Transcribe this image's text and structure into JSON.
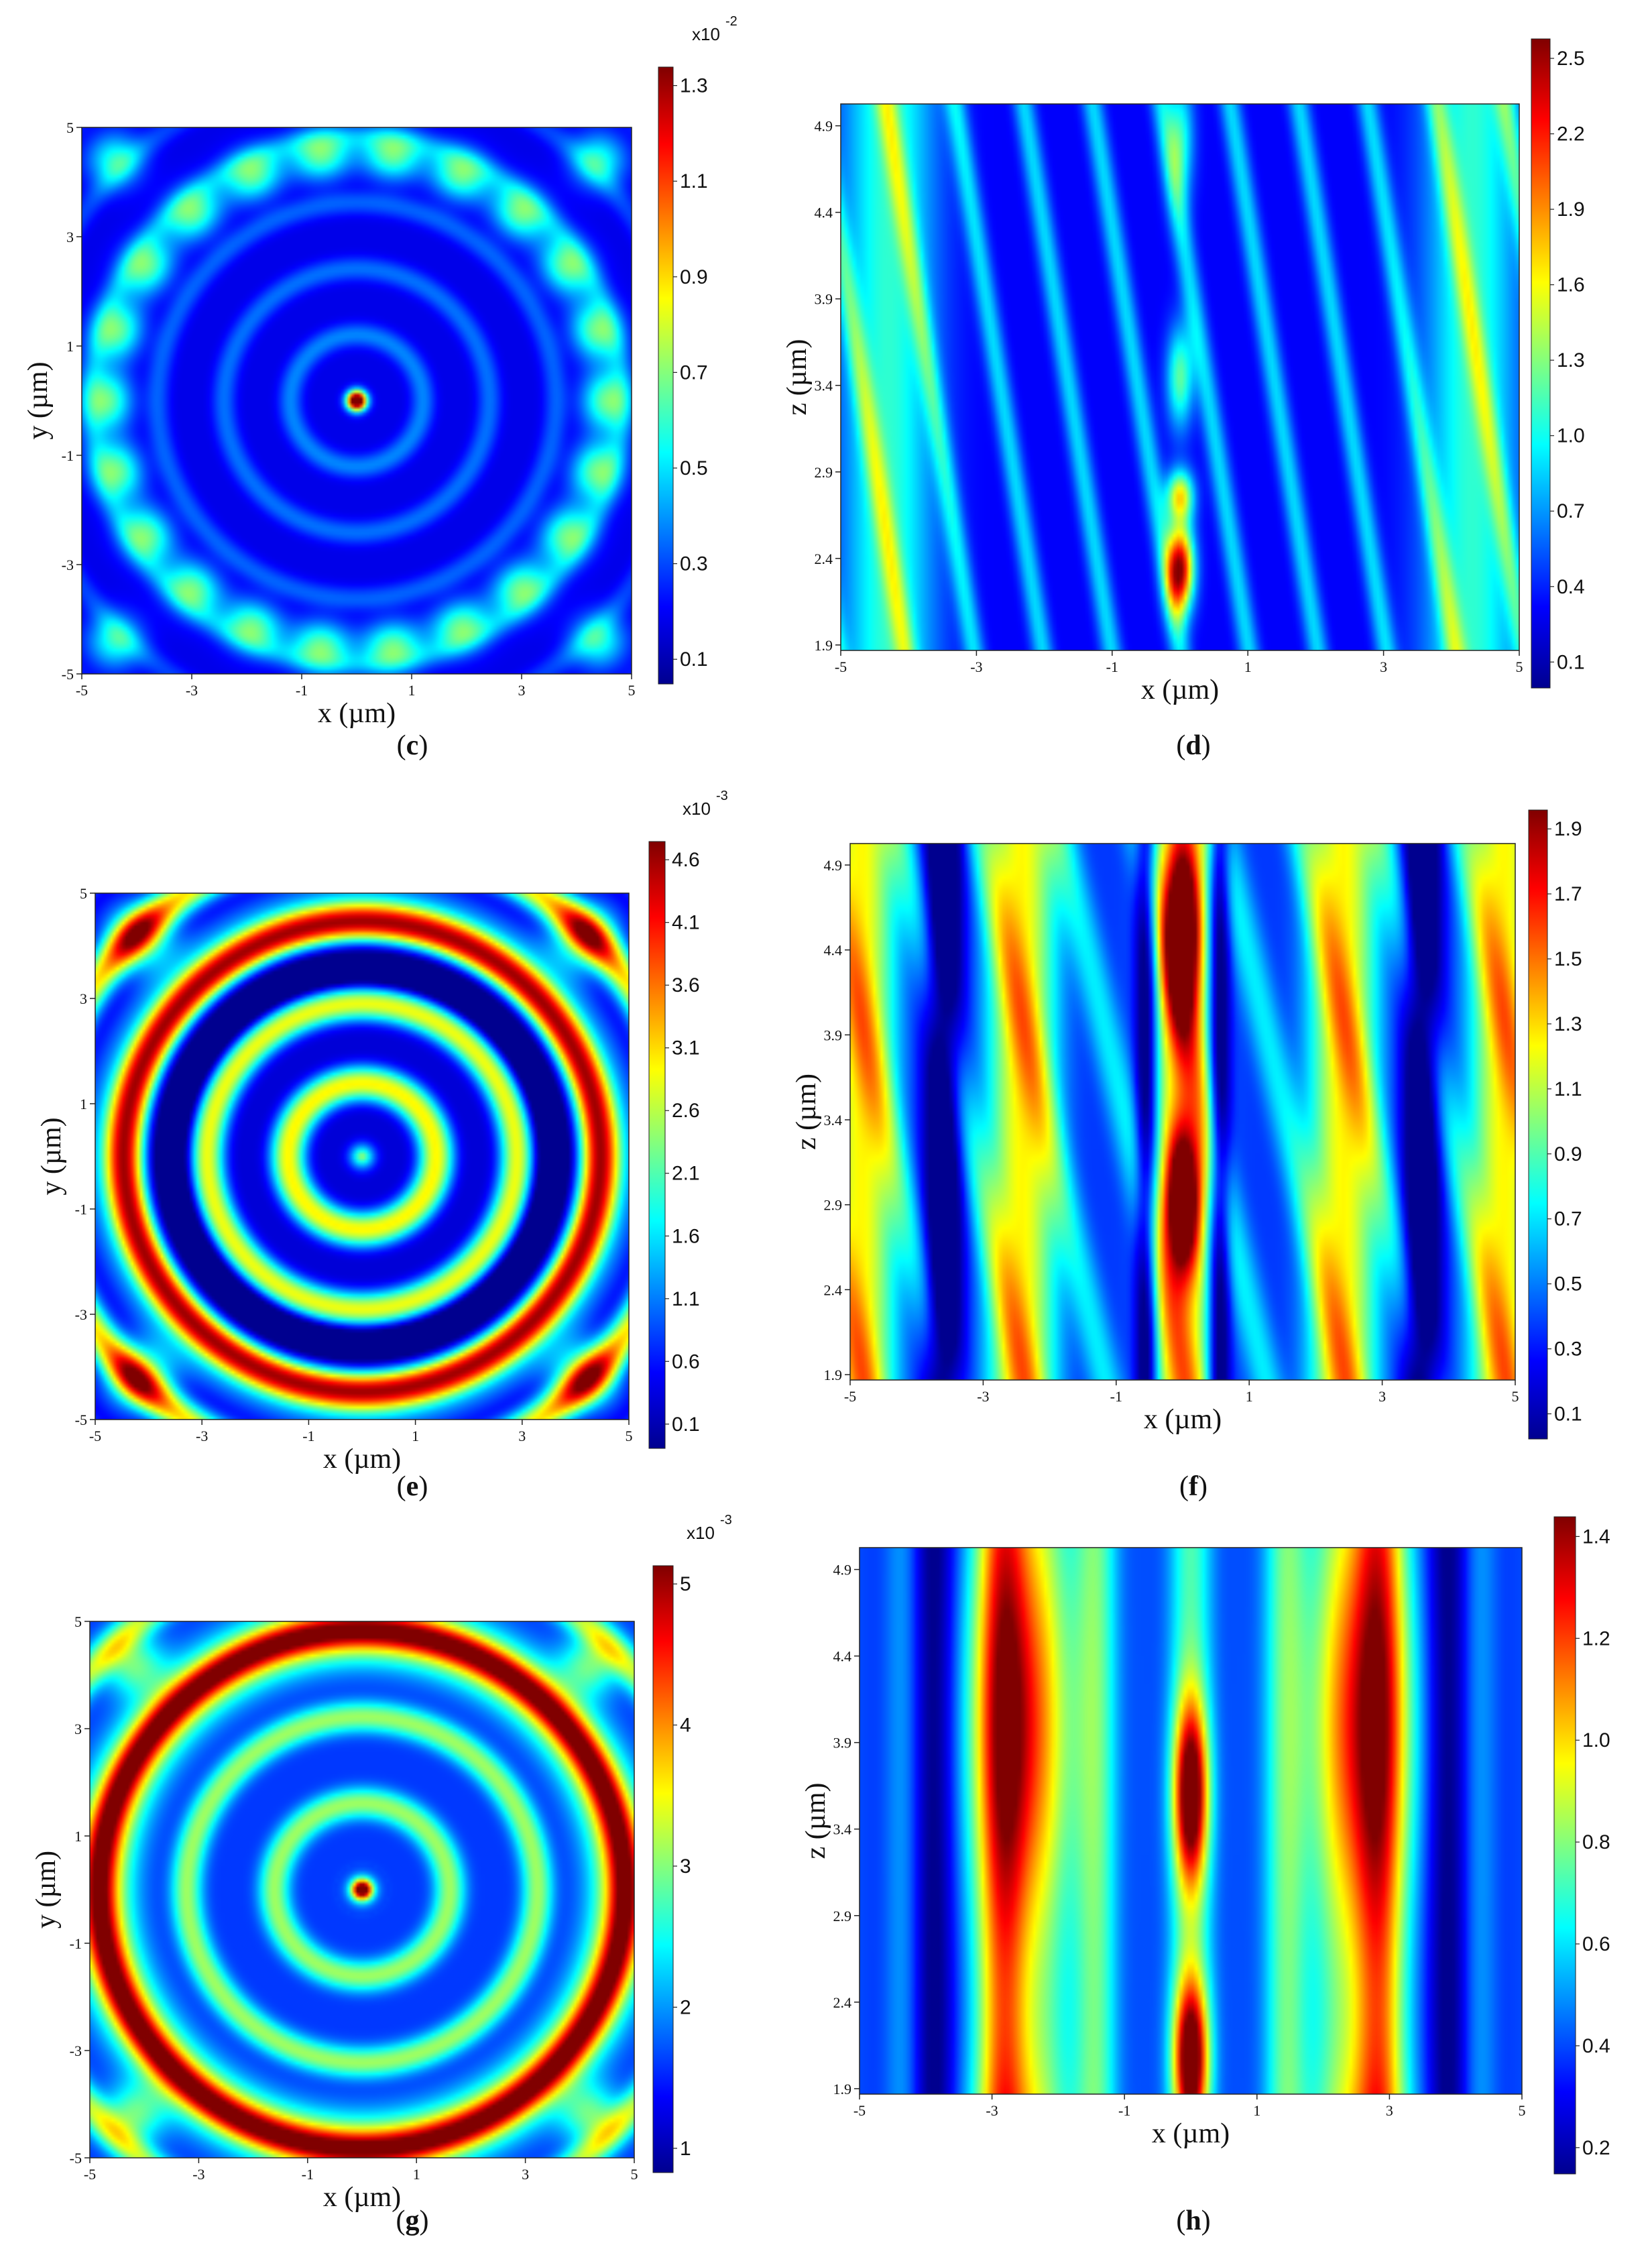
{
  "figure": {
    "colormap": [
      "#00008f",
      "#0000ff",
      "#0080ff",
      "#00ffff",
      "#80ff80",
      "#ffff00",
      "#ff8000",
      "#ff0000",
      "#800000"
    ]
  },
  "chart_data": [
    {
      "id": "c",
      "type": "heatmap",
      "panel_label": "c",
      "xlabel": "x (µm)",
      "ylabel": "y (µm)",
      "xlim": [
        -5,
        5
      ],
      "ylim": [
        -5,
        5
      ],
      "xticks": [
        "-5",
        "-3",
        "-1",
        "1",
        "3",
        "5"
      ],
      "yticks": [
        "-5",
        "-3",
        "-1",
        "1",
        "3",
        "5"
      ],
      "field": "focus_rings",
      "colorbar": {
        "multiplier": "x10",
        "exponent": "-2",
        "ticks": [
          "1.3",
          "1.1",
          "0.9",
          "0.7",
          "0.5",
          "0.3",
          "0.1"
        ]
      }
    },
    {
      "id": "d",
      "type": "heatmap",
      "panel_label": "d",
      "xlabel": "x (µm)",
      "ylabel": "z (µm)",
      "xlim": [
        -5,
        5
      ],
      "ylim": [
        1.9,
        4.9
      ],
      "xticks": [
        "-5",
        "-3",
        "-1",
        "1",
        "3",
        "5"
      ],
      "yticks": [
        "4.9",
        "4.4",
        "3.9",
        "3.4",
        "2.9",
        "2.4",
        "1.9"
      ],
      "field": "focus_column",
      "colorbar": {
        "multiplier": "",
        "exponent": "",
        "ticks": [
          "2.5",
          "2.2",
          "1.9",
          "1.6",
          "1.3",
          "1.0",
          "0.7",
          "0.4",
          "0.1"
        ]
      }
    },
    {
      "id": "e",
      "type": "heatmap",
      "panel_label": "e",
      "xlabel": "x (µm)",
      "ylabel": "y (µm)",
      "xlim": [
        -5,
        5
      ],
      "ylim": [
        -5,
        5
      ],
      "xticks": [
        "-5",
        "-3",
        "-1",
        "1",
        "3",
        "5"
      ],
      "yticks": [
        "-5",
        "-3",
        "-1",
        "1",
        "3",
        "5"
      ],
      "field": "bright_rings",
      "colorbar": {
        "multiplier": "x10",
        "exponent": "-3",
        "ticks": [
          "4.6",
          "4.1",
          "3.6",
          "3.1",
          "2.6",
          "2.1",
          "1.6",
          "1.1",
          "0.6",
          "0.1"
        ]
      }
    },
    {
      "id": "f",
      "type": "heatmap",
      "panel_label": "f",
      "xlabel": "x (µm)",
      "ylabel": "z (µm)",
      "xlim": [
        -5,
        5
      ],
      "ylim": [
        1.9,
        4.9
      ],
      "xticks": [
        "-5",
        "-3",
        "-1",
        "1",
        "3",
        "5"
      ],
      "yticks": [
        "4.9",
        "4.4",
        "3.9",
        "3.4",
        "2.9",
        "2.4",
        "1.9"
      ],
      "field": "stripes",
      "colorbar": {
        "multiplier": "",
        "exponent": "",
        "ticks": [
          "1.9",
          "1.7",
          "1.5",
          "1.3",
          "1.1",
          "0.9",
          "0.7",
          "0.5",
          "0.3",
          "0.1"
        ]
      }
    },
    {
      "id": "g",
      "type": "heatmap",
      "panel_label": "g",
      "xlabel": "x (µm)",
      "ylabel": "y (µm)",
      "xlim": [
        -5,
        5
      ],
      "ylim": [
        -5,
        5
      ],
      "xticks": [
        "-5",
        "-3",
        "-1",
        "1",
        "3",
        "5"
      ],
      "yticks": [
        "-5",
        "-3",
        "-1",
        "1",
        "3",
        "5"
      ],
      "field": "soft_rings",
      "colorbar": {
        "multiplier": "x10",
        "exponent": "-3",
        "ticks": [
          "5",
          "4",
          "3",
          "2",
          "1"
        ]
      }
    },
    {
      "id": "h",
      "type": "heatmap",
      "panel_label": "h",
      "xlabel": "x (µm)",
      "ylabel": "z (µm)",
      "xlim": [
        -5,
        5
      ],
      "ylim": [
        1.9,
        4.9
      ],
      "xticks": [
        "-5",
        "-3",
        "-1",
        "1",
        "3",
        "5"
      ],
      "yticks": [
        "4.9",
        "4.4",
        "3.9",
        "3.4",
        "2.9",
        "2.4",
        "1.9"
      ],
      "field": "wide_columns",
      "colorbar": {
        "multiplier": "",
        "exponent": "",
        "ticks": [
          "1.4",
          "1.2",
          "1.0",
          "0.8",
          "0.6",
          "0.4",
          "0.2"
        ]
      }
    }
  ]
}
